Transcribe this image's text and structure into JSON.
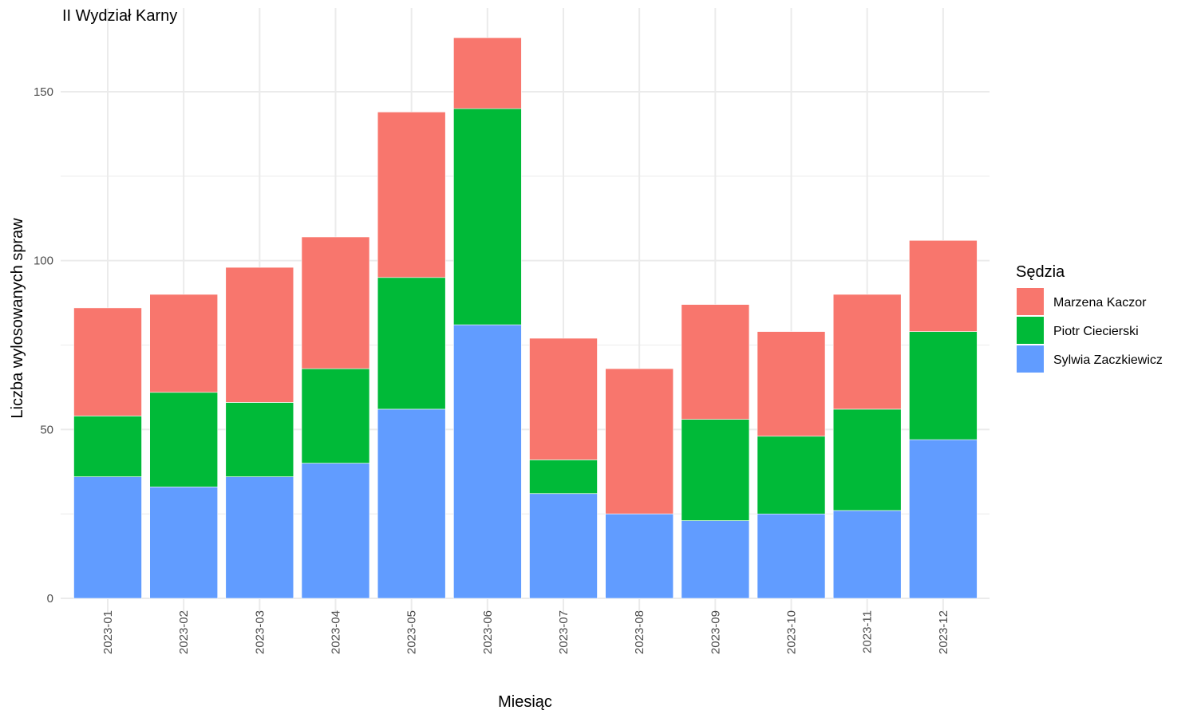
{
  "chart_data": {
    "type": "bar",
    "stacked": true,
    "title": "II Wydział Karny",
    "xlabel": "Miesiąc",
    "ylabel": "Liczba wylosowanych spraw",
    "ylim": [
      0,
      170
    ],
    "yticks": [
      0,
      50,
      100,
      150
    ],
    "grid": true,
    "legend": {
      "title": "Sędzia",
      "position": "right"
    },
    "categories": [
      "2023-01",
      "2023-02",
      "2023-03",
      "2023-04",
      "2023-05",
      "2023-06",
      "2023-07",
      "2023-08",
      "2023-09",
      "2023-10",
      "2023-11",
      "2023-12"
    ],
    "series": [
      {
        "name": "Sylwia Zaczkiewicz",
        "color": "#619CFF",
        "values": [
          36,
          33,
          36,
          40,
          56,
          81,
          31,
          25,
          23,
          25,
          26,
          47
        ]
      },
      {
        "name": "Piotr Ciecierski",
        "color": "#00BA38",
        "values": [
          18,
          28,
          22,
          28,
          39,
          64,
          10,
          0,
          30,
          23,
          30,
          32
        ]
      },
      {
        "name": "Marzena Kaczor",
        "color": "#F8766D",
        "values": [
          32,
          29,
          40,
          39,
          49,
          21,
          36,
          43,
          34,
          31,
          34,
          27
        ]
      }
    ],
    "legend_order": [
      "Marzena Kaczor",
      "Piotr Ciecierski",
      "Sylwia Zaczkiewicz"
    ]
  }
}
